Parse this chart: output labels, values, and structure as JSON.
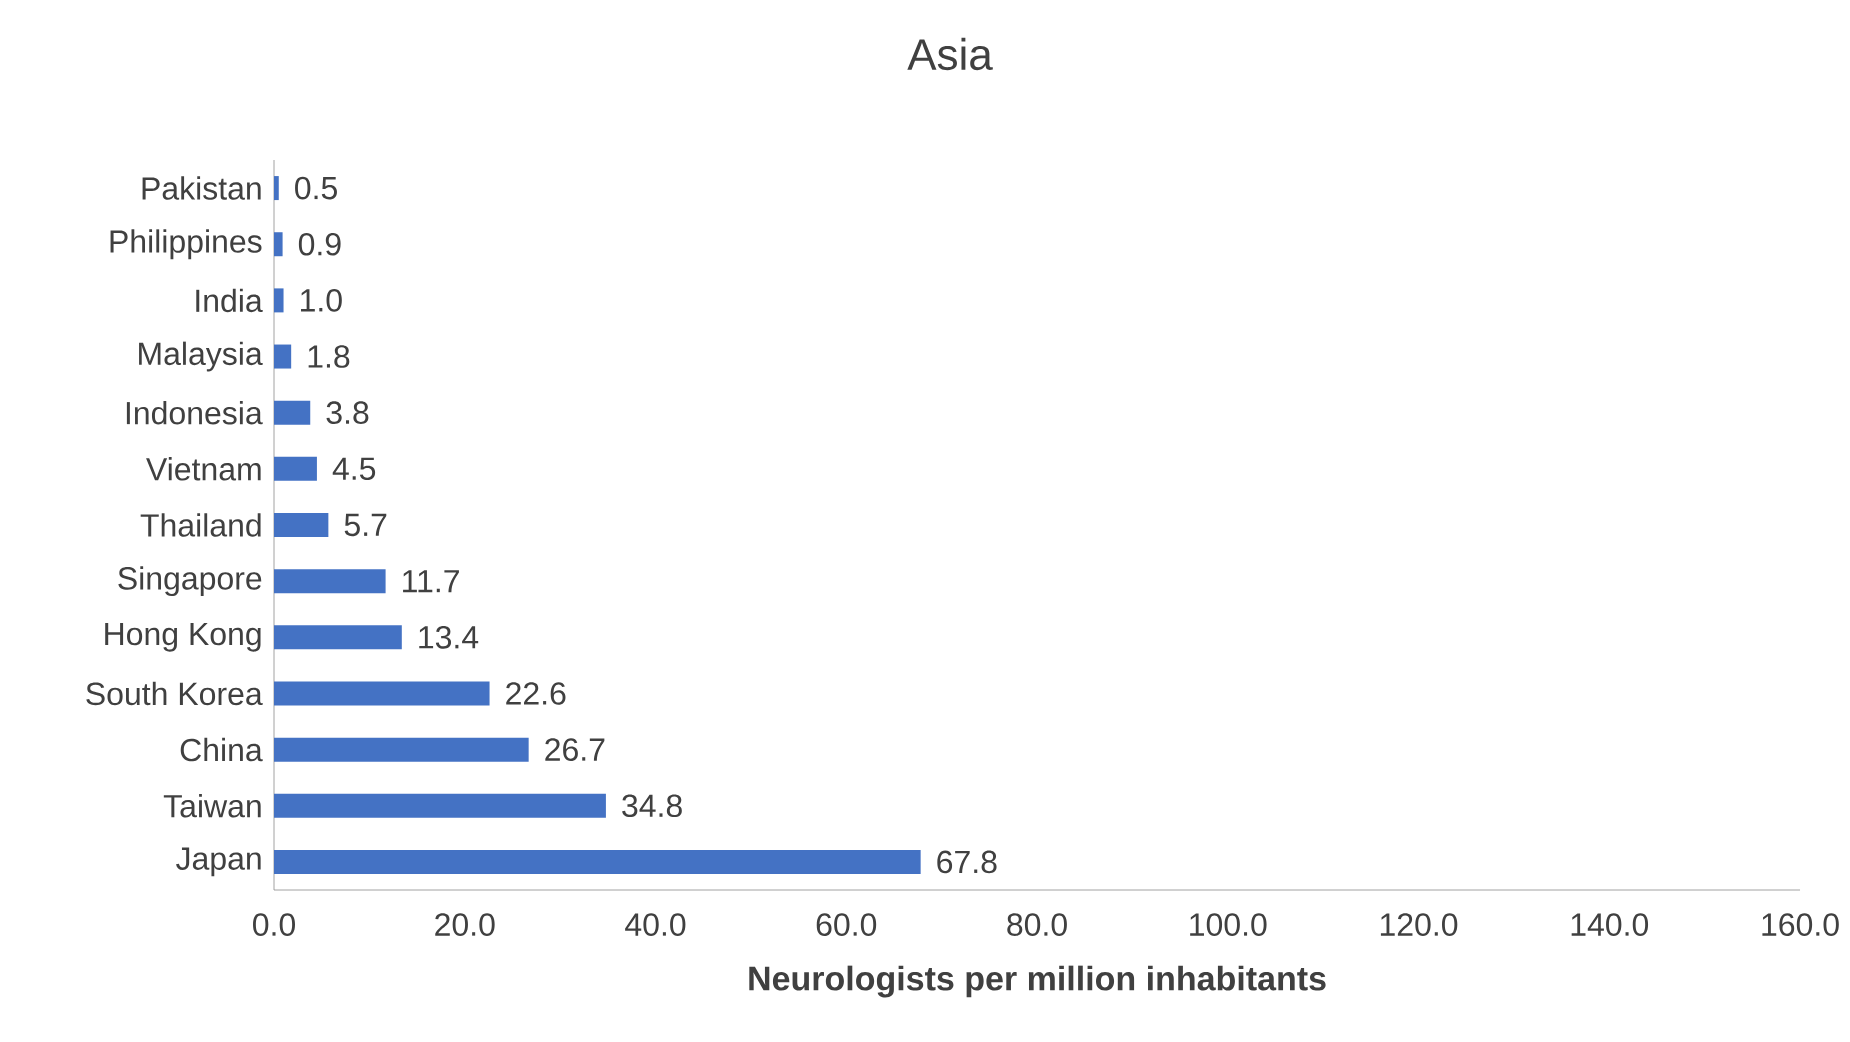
{
  "chart_data": {
    "type": "bar",
    "orientation": "horizontal",
    "title": "Asia",
    "xlabel": "Neurologists per million inhabitants",
    "categories": [
      "Pakistan",
      "Philippines",
      "India",
      "Malaysia",
      "Indonesia",
      "Vietnam",
      "Thailand",
      "Singapore",
      "Hong Kong",
      "South Korea",
      "China",
      "Taiwan",
      "Japan"
    ],
    "values": [
      0.5,
      0.9,
      1.0,
      1.8,
      3.8,
      4.5,
      5.7,
      11.7,
      13.4,
      22.6,
      26.7,
      34.8,
      67.8
    ],
    "value_labels": [
      "0.5",
      "0.9",
      "1.0",
      "1.8",
      "3.8",
      "4.5",
      "5.7",
      "11.7",
      "13.4",
      "22.6",
      "26.7",
      "34.8",
      "67.8"
    ],
    "color": "#4472c4",
    "xlim": [
      0,
      160
    ],
    "xticks": [
      {
        "value": 0,
        "label": "0.0"
      },
      {
        "value": 20,
        "label": "20.0"
      },
      {
        "value": 40,
        "label": "40.0"
      },
      {
        "value": 60,
        "label": "60.0"
      },
      {
        "value": 80,
        "label": "80.0"
      },
      {
        "value": 100,
        "label": "100.0"
      },
      {
        "value": 120,
        "label": "120.0"
      },
      {
        "value": 140,
        "label": "140.0"
      },
      {
        "value": 160,
        "label": "160.0"
      }
    ],
    "grid": false
  }
}
